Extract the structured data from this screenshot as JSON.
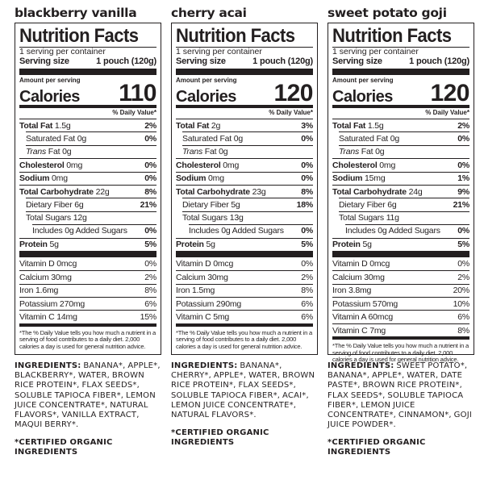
{
  "labels": {
    "nutrition_facts": "Nutrition Facts",
    "servings": "1 serving per container",
    "serving_size_label": "Serving size",
    "serving_size_value": "1 pouch (120g)",
    "amount_per_serving": "Amount per serving",
    "calories": "Calories",
    "daily_value": "% Daily Value*",
    "total_fat": "Total Fat",
    "saturated_fat": "Saturated Fat",
    "trans_prefix": "Trans",
    "trans_suffix": " Fat",
    "cholesterol": "Cholesterol",
    "sodium": "Sodium",
    "total_carb": "Total Carbohydrate",
    "dietary_fiber": "Dietary Fiber",
    "total_sugars": "Total Sugars",
    "added_sugars": "Includes 0g Added Sugars",
    "protein": "Protein",
    "footnote": "*The % Daily Value tells you how much a nutrient in a serving of food contributes to a daily diet. 2,000 calories a day is used for general nutrition advice.",
    "ingredients_label": "INGREDIENTS:",
    "certified": "*CERTIFIED ORGANIC INGREDIENTS"
  },
  "products": [
    {
      "flavor": "blackberry vanilla",
      "calories": "110",
      "total_fat": "1.5g",
      "total_fat_dv": "2%",
      "saturated_fat": "0g",
      "saturated_fat_dv": "0%",
      "trans_fat": "0g",
      "cholesterol": "0mg",
      "cholesterol_dv": "0%",
      "sodium": "0mg",
      "sodium_dv": "0%",
      "total_carb": "22g",
      "total_carb_dv": "8%",
      "dietary_fiber": "6g",
      "dietary_fiber_dv": "21%",
      "total_sugars": "12g",
      "added_sugars_dv": "0%",
      "protein": "5g",
      "protein_dv": "5%",
      "vitamins": [
        {
          "label": "Vitamin D 0mcg",
          "dv": "0%"
        },
        {
          "label": "Calcium 30mg",
          "dv": "2%"
        },
        {
          "label": "Iron 1.6mg",
          "dv": "8%"
        },
        {
          "label": "Potassium 270mg",
          "dv": "6%"
        },
        {
          "label": "Vitamin C 14mg",
          "dv": "15%"
        }
      ],
      "ingredients": "BANANA*, APPLE*, BLACKBERRY*, WATER, BROWN RICE PROTEIN*, FLAX SEEDS*, SOLUBLE TAPIOCA FIBER*, LEMON JUICE CONCENTRATE*, NATURAL FLAVORS*, VANILLA EXTRACT, MAQUI BERRY*."
    },
    {
      "flavor": "cherry acai",
      "calories": "120",
      "total_fat": "2g",
      "total_fat_dv": "3%",
      "saturated_fat": "0g",
      "saturated_fat_dv": "0%",
      "trans_fat": "0g",
      "cholesterol": "0mg",
      "cholesterol_dv": "0%",
      "sodium": "0mg",
      "sodium_dv": "0%",
      "total_carb": "23g",
      "total_carb_dv": "8%",
      "dietary_fiber": "5g",
      "dietary_fiber_dv": "18%",
      "total_sugars": "13g",
      "added_sugars_dv": "0%",
      "protein": "5g",
      "protein_dv": "5%",
      "vitamins": [
        {
          "label": "Vitamin D 0mcg",
          "dv": "0%"
        },
        {
          "label": "Calcium 30mg",
          "dv": "2%"
        },
        {
          "label": "Iron 1.5mg",
          "dv": "8%"
        },
        {
          "label": "Potassium 290mg",
          "dv": "6%"
        },
        {
          "label": "Vitamin C 5mg",
          "dv": "6%"
        }
      ],
      "ingredients": "BANANA*, CHERRY*, APPLE*, WATER, BROWN RICE PROTEIN*, FLAX SEEDS*, SOLUBLE TAPIOCA FIBER*, ACAI*, LEMON JUICE CONCENTRATE*, NATURAL FLAVORS*."
    },
    {
      "flavor": "sweet potato goji",
      "calories": "120",
      "total_fat": "1.5g",
      "total_fat_dv": "2%",
      "saturated_fat": "0g",
      "saturated_fat_dv": "0%",
      "trans_fat": "0g",
      "cholesterol": "0mg",
      "cholesterol_dv": "0%",
      "sodium": "15mg",
      "sodium_dv": "1%",
      "total_carb": "24g",
      "total_carb_dv": "9%",
      "dietary_fiber": "6g",
      "dietary_fiber_dv": "21%",
      "total_sugars": "11g",
      "added_sugars_dv": "0%",
      "protein": "5g",
      "protein_dv": "5%",
      "vitamins": [
        {
          "label": "Vitamin D 0mcg",
          "dv": "0%"
        },
        {
          "label": "Calcium 30mg",
          "dv": "2%"
        },
        {
          "label": "Iron 3.8mg",
          "dv": "20%"
        },
        {
          "label": "Potassium 570mg",
          "dv": "10%"
        },
        {
          "label": "Vitamin A 60mcg",
          "dv": "6%"
        },
        {
          "label": "Vitamin C 7mg",
          "dv": "8%"
        }
      ],
      "ingredients": "SWEET POTATO*, BANANA*, APPLE*, WATER, DATE PASTE*, BROWN RICE PROTEIN*, FLAX SEEDS*, SOLUBLE TAPIOCA FIBER*, LEMON JUICE CONCENTRATE*, CINNAMON*, GOJI JUICE POWDER*."
    }
  ]
}
